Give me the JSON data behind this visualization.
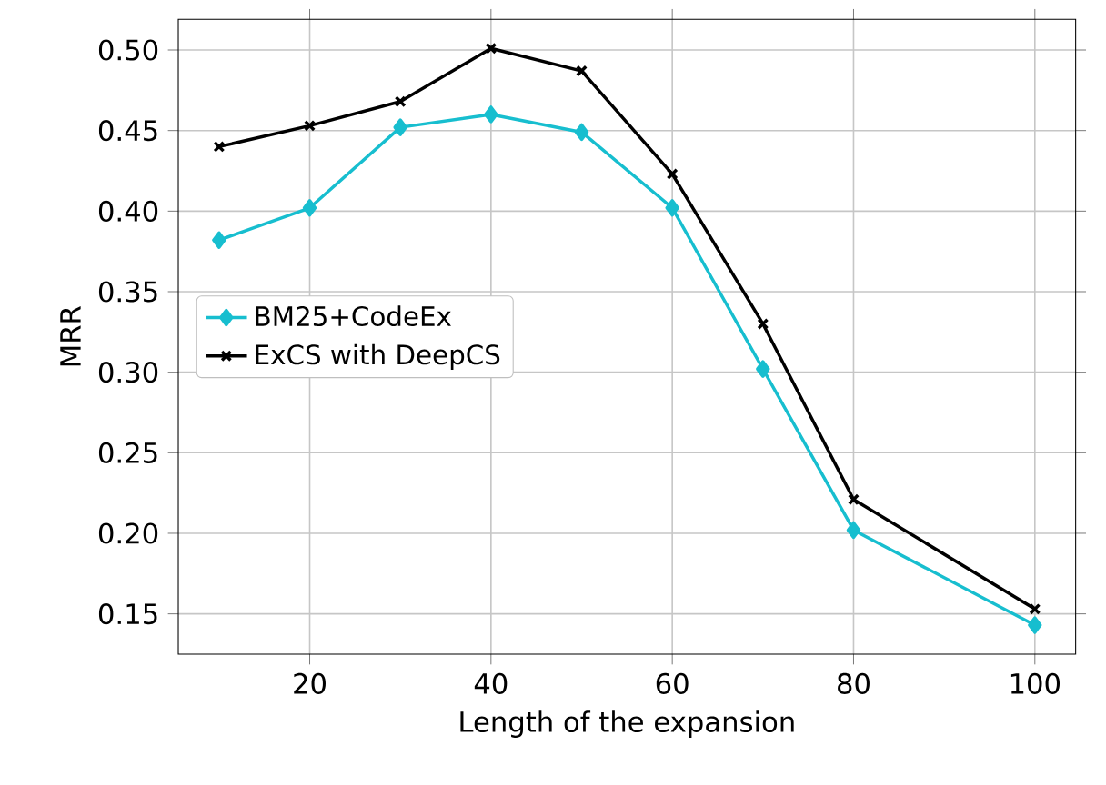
{
  "chart_data": {
    "type": "line",
    "xlabel": "Length of the expansion",
    "ylabel": "MRR",
    "x": [
      10,
      20,
      30,
      40,
      50,
      60,
      70,
      80,
      100
    ],
    "series": [
      {
        "name": "BM25+CodeEx",
        "color": "#17becf",
        "marker": "diamond",
        "values": [
          0.382,
          0.402,
          0.452,
          0.46,
          0.449,
          0.402,
          0.302,
          0.202,
          0.143
        ]
      },
      {
        "name": "ExCS with DeepCS",
        "color": "#000000",
        "marker": "cross",
        "values": [
          0.44,
          0.453,
          0.468,
          0.501,
          0.487,
          0.423,
          0.33,
          0.221,
          0.153
        ]
      }
    ],
    "xlim": [
      5.5,
      104.5
    ],
    "ylim": [
      0.125,
      0.519
    ],
    "xticks": [
      20,
      40,
      60,
      80,
      100
    ],
    "yticks": [
      {
        "value": 0.15,
        "label": "0.15"
      },
      {
        "value": 0.2,
        "label": "0.20"
      },
      {
        "value": 0.25,
        "label": "0.25"
      },
      {
        "value": 0.3,
        "label": "0.30"
      },
      {
        "value": 0.35,
        "label": "0.35"
      },
      {
        "value": 0.4,
        "label": "0.40"
      },
      {
        "value": 0.45,
        "label": "0.45"
      },
      {
        "value": 0.5,
        "label": "0.50"
      }
    ],
    "grid": true,
    "legend": "left"
  }
}
